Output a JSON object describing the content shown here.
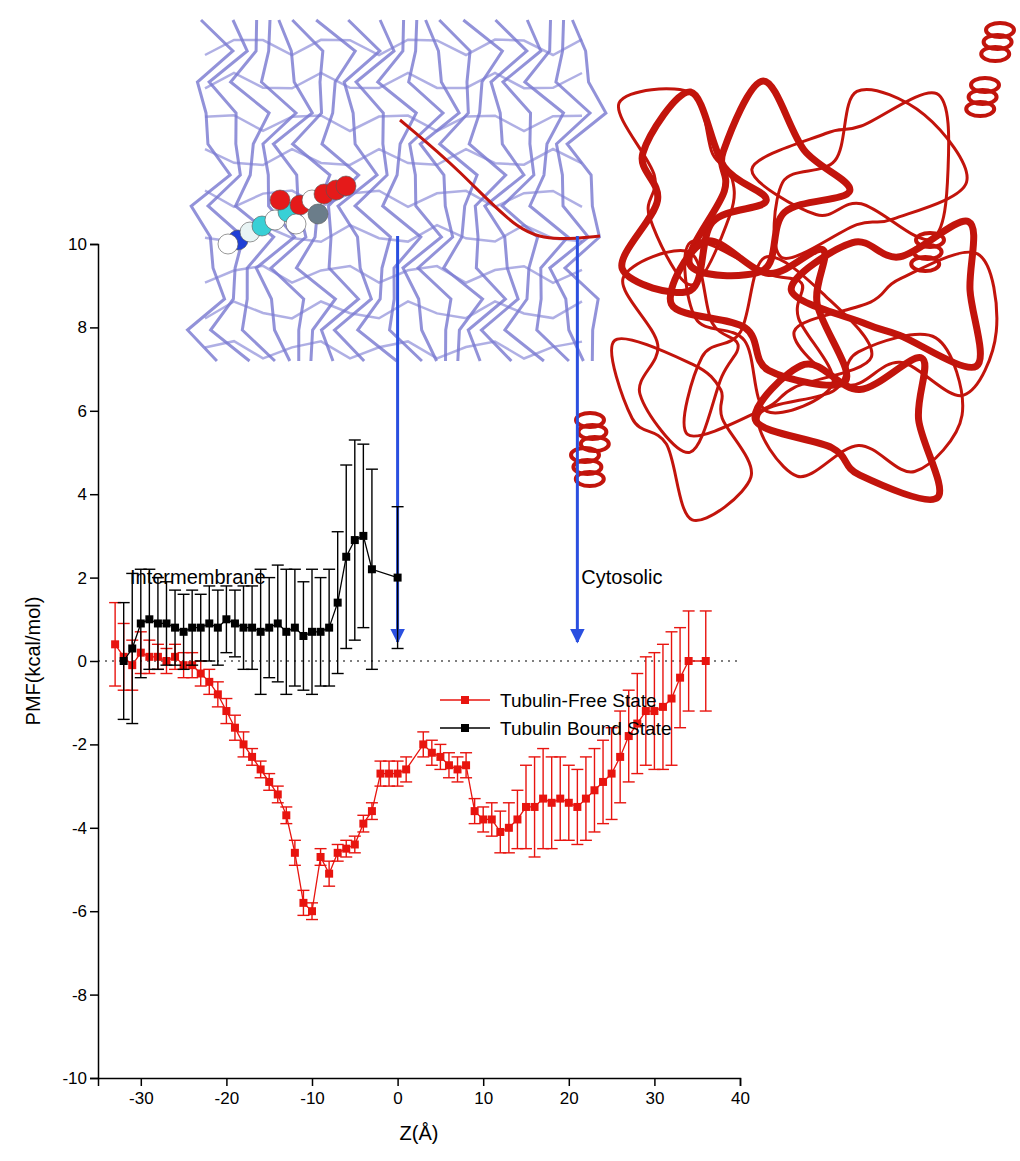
{
  "chart_data": {
    "type": "line",
    "x_label": "Z(Å)",
    "y_label": "PMF(kcal/mol)",
    "xlim": [
      -35,
      40
    ],
    "xticks": [
      -30,
      -20,
      -10,
      0,
      10,
      20,
      30,
      40
    ],
    "ylim": [
      -10,
      10
    ],
    "yticks": [
      -10,
      -8,
      -6,
      -4,
      -2,
      0,
      2,
      4,
      6,
      8,
      10
    ],
    "legend": "upper right",
    "annotations": [
      "Intermembrane",
      "Cytosolic"
    ],
    "reference_line": 0,
    "arrows_x": [
      0,
      21
    ],
    "series": [
      {
        "name": "Tubulin-Free State",
        "color": "#e8140f",
        "marker": "square",
        "line_style": "solid",
        "x": [
          -33,
          -32,
          -31,
          -30,
          -29,
          -28,
          -27,
          -26,
          -25,
          -24,
          -23,
          -22,
          -21,
          -20,
          -19,
          -18,
          -17,
          -16,
          -15,
          -14,
          -13,
          -12,
          -11,
          -10,
          -9,
          -8,
          -7,
          -6,
          -5,
          -4,
          -3,
          -2,
          -1,
          0,
          1,
          3,
          4,
          5,
          6,
          7,
          8,
          9,
          10,
          11,
          12,
          13,
          14,
          15,
          16,
          17,
          18,
          19,
          20,
          21,
          22,
          23,
          24,
          25,
          26,
          27,
          28,
          29,
          30,
          31,
          32,
          33,
          34,
          36
        ],
        "values": [
          0.4,
          0.1,
          -0.1,
          0.2,
          0.1,
          0.1,
          0.0,
          0.1,
          -0.1,
          -0.1,
          -0.3,
          -0.5,
          -0.8,
          -1.2,
          -1.6,
          -2.0,
          -2.3,
          -2.6,
          -2.9,
          -3.2,
          -3.7,
          -4.6,
          -5.8,
          -6.0,
          -4.7,
          -5.1,
          -4.6,
          -4.5,
          -4.4,
          -3.9,
          -3.6,
          -2.7,
          -2.7,
          -2.7,
          -2.6,
          -2.0,
          -2.2,
          -2.3,
          -2.5,
          -2.6,
          -2.5,
          -3.6,
          -3.8,
          -3.8,
          -4.1,
          -4.0,
          -3.8,
          -3.5,
          -3.5,
          -3.3,
          -3.4,
          -3.3,
          -3.4,
          -3.5,
          -3.3,
          -3.1,
          -2.9,
          -2.7,
          -2.3,
          -1.8,
          -1.5,
          -1.2,
          -1.2,
          -1.1,
          -0.9,
          -0.4,
          0.0,
          0.0
        ],
        "errors": [
          1.0,
          0.8,
          0.6,
          0.5,
          0.4,
          0.3,
          0.3,
          0.3,
          0.3,
          0.3,
          0.3,
          0.3,
          0.3,
          0.3,
          0.3,
          0.3,
          0.2,
          0.2,
          0.2,
          0.2,
          0.2,
          0.3,
          0.3,
          0.2,
          0.2,
          0.3,
          0.2,
          0.2,
          0.2,
          0.2,
          0.2,
          0.3,
          0.3,
          0.3,
          0.3,
          0.3,
          0.3,
          0.3,
          0.3,
          0.3,
          0.3,
          0.3,
          0.3,
          0.4,
          0.5,
          0.6,
          0.7,
          1.0,
          1.2,
          1.2,
          1.1,
          1.0,
          0.9,
          0.9,
          1.0,
          1.0,
          1.0,
          1.1,
          1.1,
          1.1,
          1.2,
          1.3,
          1.4,
          1.5,
          1.6,
          1.2,
          1.2,
          1.2
        ]
      },
      {
        "name": "Tubulin Bound State",
        "color": "#000000",
        "marker": "square",
        "line_style": "solid",
        "x": [
          -32,
          -31,
          -30,
          -29,
          -28,
          -27,
          -26,
          -25,
          -24,
          -23,
          -22,
          -21,
          -20,
          -19,
          -18,
          -17,
          -16,
          -15,
          -14,
          -13,
          -12,
          -11,
          -10,
          -9,
          -8,
          -7,
          -6,
          -5,
          -4,
          -3,
          0
        ],
        "values": [
          0.0,
          0.3,
          0.9,
          1.0,
          0.9,
          0.9,
          0.8,
          0.7,
          0.8,
          0.8,
          0.9,
          0.8,
          1.0,
          0.9,
          0.8,
          0.8,
          0.7,
          0.8,
          0.9,
          0.7,
          0.8,
          0.6,
          0.7,
          0.7,
          0.8,
          1.4,
          2.5,
          2.9,
          3.0,
          2.2,
          2.0
        ],
        "errors": [
          1.4,
          1.8,
          1.3,
          1.2,
          1.1,
          1.0,
          0.9,
          0.9,
          0.9,
          0.8,
          0.9,
          0.9,
          0.8,
          0.8,
          1.0,
          1.0,
          1.5,
          1.2,
          1.4,
          1.5,
          1.4,
          1.3,
          1.5,
          1.3,
          1.4,
          1.7,
          2.2,
          2.4,
          2.2,
          2.4,
          1.7
        ]
      }
    ]
  }
}
